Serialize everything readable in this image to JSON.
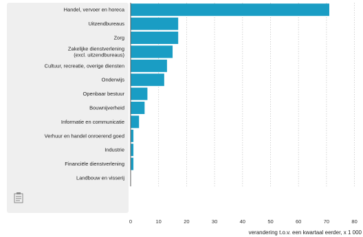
{
  "chart_data": {
    "type": "bar",
    "orientation": "horizontal",
    "categories": [
      "Handel, vervoer en horeca",
      "Uitzendbureaus",
      "Zorg",
      [
        "Zakelijke dienstverlening",
        "(excl. uitzendbureaus)"
      ],
      "Cultuur, recreatie, overige diensten",
      "Onderwijs",
      "Openbaar bestuur",
      "Bouwnijverheid",
      "Informatie en communicatie",
      "Verhuur en handel onroerend goed",
      "Industrie",
      "Financiële dienstverlening",
      "Landbouw en visserij"
    ],
    "values": [
      71,
      17,
      17,
      15,
      13,
      12,
      6,
      5,
      3,
      1,
      1,
      1,
      0
    ],
    "xlim": [
      0,
      80
    ],
    "xticks": [
      0,
      10,
      20,
      30,
      40,
      50,
      60,
      70,
      80
    ],
    "xlabel": "verandering t.o.v. een kwartaal eerder, x 1 000",
    "ylabel": "",
    "title": "",
    "grid": "vertical dotted",
    "bar_color": "#1a9dc4"
  },
  "icons": {
    "document": "document-icon"
  }
}
